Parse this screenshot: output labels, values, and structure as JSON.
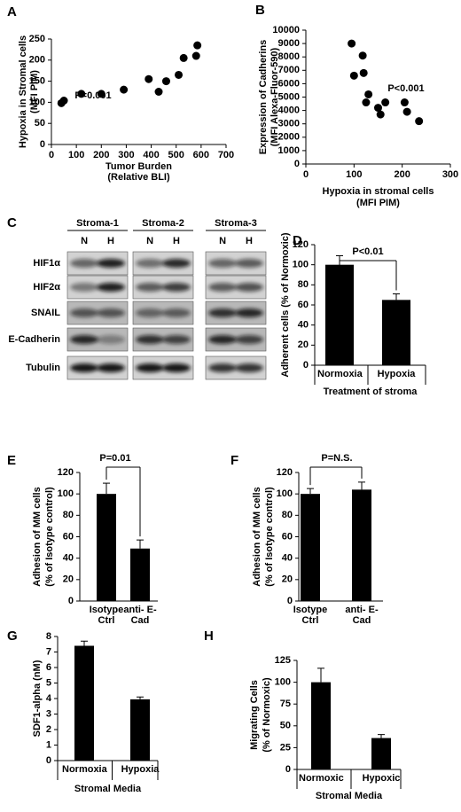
{
  "chart_data": [
    {
      "panel": "A",
      "type": "scatter",
      "annotation": "P=0.001",
      "xlabel": [
        "Tumor Burden",
        "(Relative BLI)"
      ],
      "ylabel": [
        "Hypoxia in Stromal cells",
        "(MFI PIM)"
      ],
      "x": [
        40,
        50,
        120,
        200,
        290,
        390,
        430,
        460,
        510,
        530,
        580,
        585
      ],
      "values": [
        98,
        104,
        120,
        120,
        130,
        155,
        125,
        150,
        165,
        205,
        210,
        235
      ],
      "xlim": [
        0,
        700
      ],
      "xticks": [
        0,
        100,
        200,
        300,
        400,
        500,
        600,
        700
      ],
      "ylim": [
        0,
        250
      ],
      "yticks": [
        0,
        50,
        100,
        150,
        200,
        250
      ],
      "color": "#000000"
    },
    {
      "panel": "B",
      "type": "scatter",
      "annotation": "P<0.001",
      "xlabel": [
        "Hypoxia in stromal  cells",
        "(MFI PIM)"
      ],
      "ylabel": [
        "Expression of Cadherins",
        "(MFI Alexa-Fluor-590)"
      ],
      "x": [
        95,
        100,
        118,
        120,
        125,
        130,
        150,
        155,
        165,
        205,
        210,
        235
      ],
      "values": [
        9000,
        6600,
        8100,
        6800,
        4600,
        5200,
        4200,
        3700,
        4600,
        4600,
        3900,
        3200
      ],
      "xlim": [
        0,
        300
      ],
      "xticks": [
        0,
        100,
        200,
        300
      ],
      "ylim": [
        0,
        10000
      ],
      "yticks": [
        0,
        1000,
        2000,
        3000,
        4000,
        5000,
        6000,
        7000,
        8000,
        9000,
        10000
      ],
      "color": "#000000"
    },
    {
      "panel": "D",
      "type": "bar",
      "annotation": "P<0.01",
      "xlabel": [
        "Treatment of stroma"
      ],
      "ylabel": [
        "Adherent cells (% of Normoxic)"
      ],
      "categories": [
        "Normoxia",
        "Hypoxia"
      ],
      "values": [
        100,
        65
      ],
      "errors": [
        9,
        6
      ],
      "ylim": [
        0,
        120
      ],
      "yticks": [
        0,
        20,
        40,
        60,
        80,
        100,
        120
      ],
      "color": "#000000"
    },
    {
      "panel": "E",
      "type": "bar",
      "annotation": "P=0.01",
      "ylabel": [
        "Adhesion of MM cells",
        "(% of Isotype control)"
      ],
      "categories": [
        "Isotype Ctrl",
        "anti- E-Cad"
      ],
      "values": [
        100,
        49
      ],
      "errors": [
        10,
        8
      ],
      "ylim": [
        0,
        120
      ],
      "yticks": [
        0,
        20,
        40,
        60,
        80,
        100,
        120
      ],
      "color": "#000000"
    },
    {
      "panel": "F",
      "type": "bar",
      "annotation": "P=N.S.",
      "ylabel": [
        "Adhesion of MM cells",
        "(% of Isotype control)"
      ],
      "categories": [
        "Isotype Ctrl",
        "anti- E-Cad"
      ],
      "values": [
        100,
        104
      ],
      "errors": [
        5,
        7
      ],
      "ylim": [
        0,
        120
      ],
      "yticks": [
        0,
        20,
        40,
        60,
        80,
        100,
        120
      ],
      "color": "#000000"
    },
    {
      "panel": "G",
      "type": "bar",
      "xlabel": [
        "Stromal Media"
      ],
      "ylabel": [
        "SDF1-alpha (nM)"
      ],
      "categories": [
        "Normoxia",
        "Hypoxia"
      ],
      "values": [
        7.4,
        3.95
      ],
      "errors": [
        0.3,
        0.15
      ],
      "ylim": [
        0,
        8
      ],
      "yticks": [
        0,
        1,
        2,
        3,
        4,
        5,
        6,
        7,
        8
      ],
      "color": "#000000"
    },
    {
      "panel": "H",
      "type": "bar",
      "xlabel": [
        "Stromal Media"
      ],
      "ylabel": [
        "Migrating Cells",
        "(% of Normoxic)"
      ],
      "categories": [
        "Normoxic",
        "Hypoxic"
      ],
      "values": [
        100,
        36
      ],
      "errors": [
        16,
        4
      ],
      "ylim": [
        0,
        125
      ],
      "yticks": [
        0,
        25,
        50,
        75,
        100,
        125
      ],
      "color": "#000000"
    }
  ],
  "blot": {
    "panel": "C",
    "groups": [
      "Stroma-1",
      "Stroma-2",
      "Stroma-3"
    ],
    "lanes": [
      "N",
      "H"
    ],
    "rows": [
      "HIF1α",
      "HIF2α",
      "SNAIL",
      "E-Cadherin",
      "Tubulin"
    ]
  }
}
